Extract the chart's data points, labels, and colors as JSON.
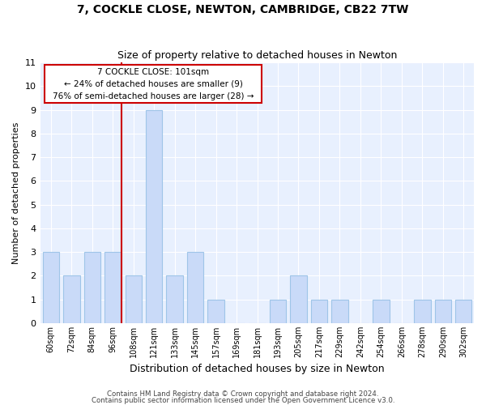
{
  "title": "7, COCKLE CLOSE, NEWTON, CAMBRIDGE, CB22 7TW",
  "subtitle": "Size of property relative to detached houses in Newton",
  "xlabel": "Distribution of detached houses by size in Newton",
  "ylabel": "Number of detached properties",
  "bin_labels": [
    "60sqm",
    "72sqm",
    "84sqm",
    "96sqm",
    "108sqm",
    "121sqm",
    "133sqm",
    "145sqm",
    "157sqm",
    "169sqm",
    "181sqm",
    "193sqm",
    "205sqm",
    "217sqm",
    "229sqm",
    "242sqm",
    "254sqm",
    "266sqm",
    "278sqm",
    "290sqm",
    "302sqm"
  ],
  "bar_heights": [
    3,
    2,
    3,
    3,
    2,
    9,
    2,
    3,
    1,
    0,
    0,
    1,
    2,
    1,
    1,
    0,
    1,
    0,
    1,
    1,
    1
  ],
  "bar_color": "#c9daf8",
  "bar_edge_color": "#9fc5e8",
  "grid_color": "#c9daf8",
  "bg_color": "#e8f0fe",
  "reference_line_color": "#cc0000",
  "annotation_line1": "7 COCKLE CLOSE: 101sqm",
  "annotation_line2": "← 24% of detached houses are smaller (9)",
  "annotation_line3": "76% of semi-detached houses are larger (28) →",
  "footnote1": "Contains HM Land Registry data © Crown copyright and database right 2024.",
  "footnote2": "Contains public sector information licensed under the Open Government Licence v3.0.",
  "ylim": [
    0,
    11
  ],
  "yticks": [
    0,
    1,
    2,
    3,
    4,
    5,
    6,
    7,
    8,
    9,
    10,
    11
  ],
  "ref_line_x": 3.417
}
